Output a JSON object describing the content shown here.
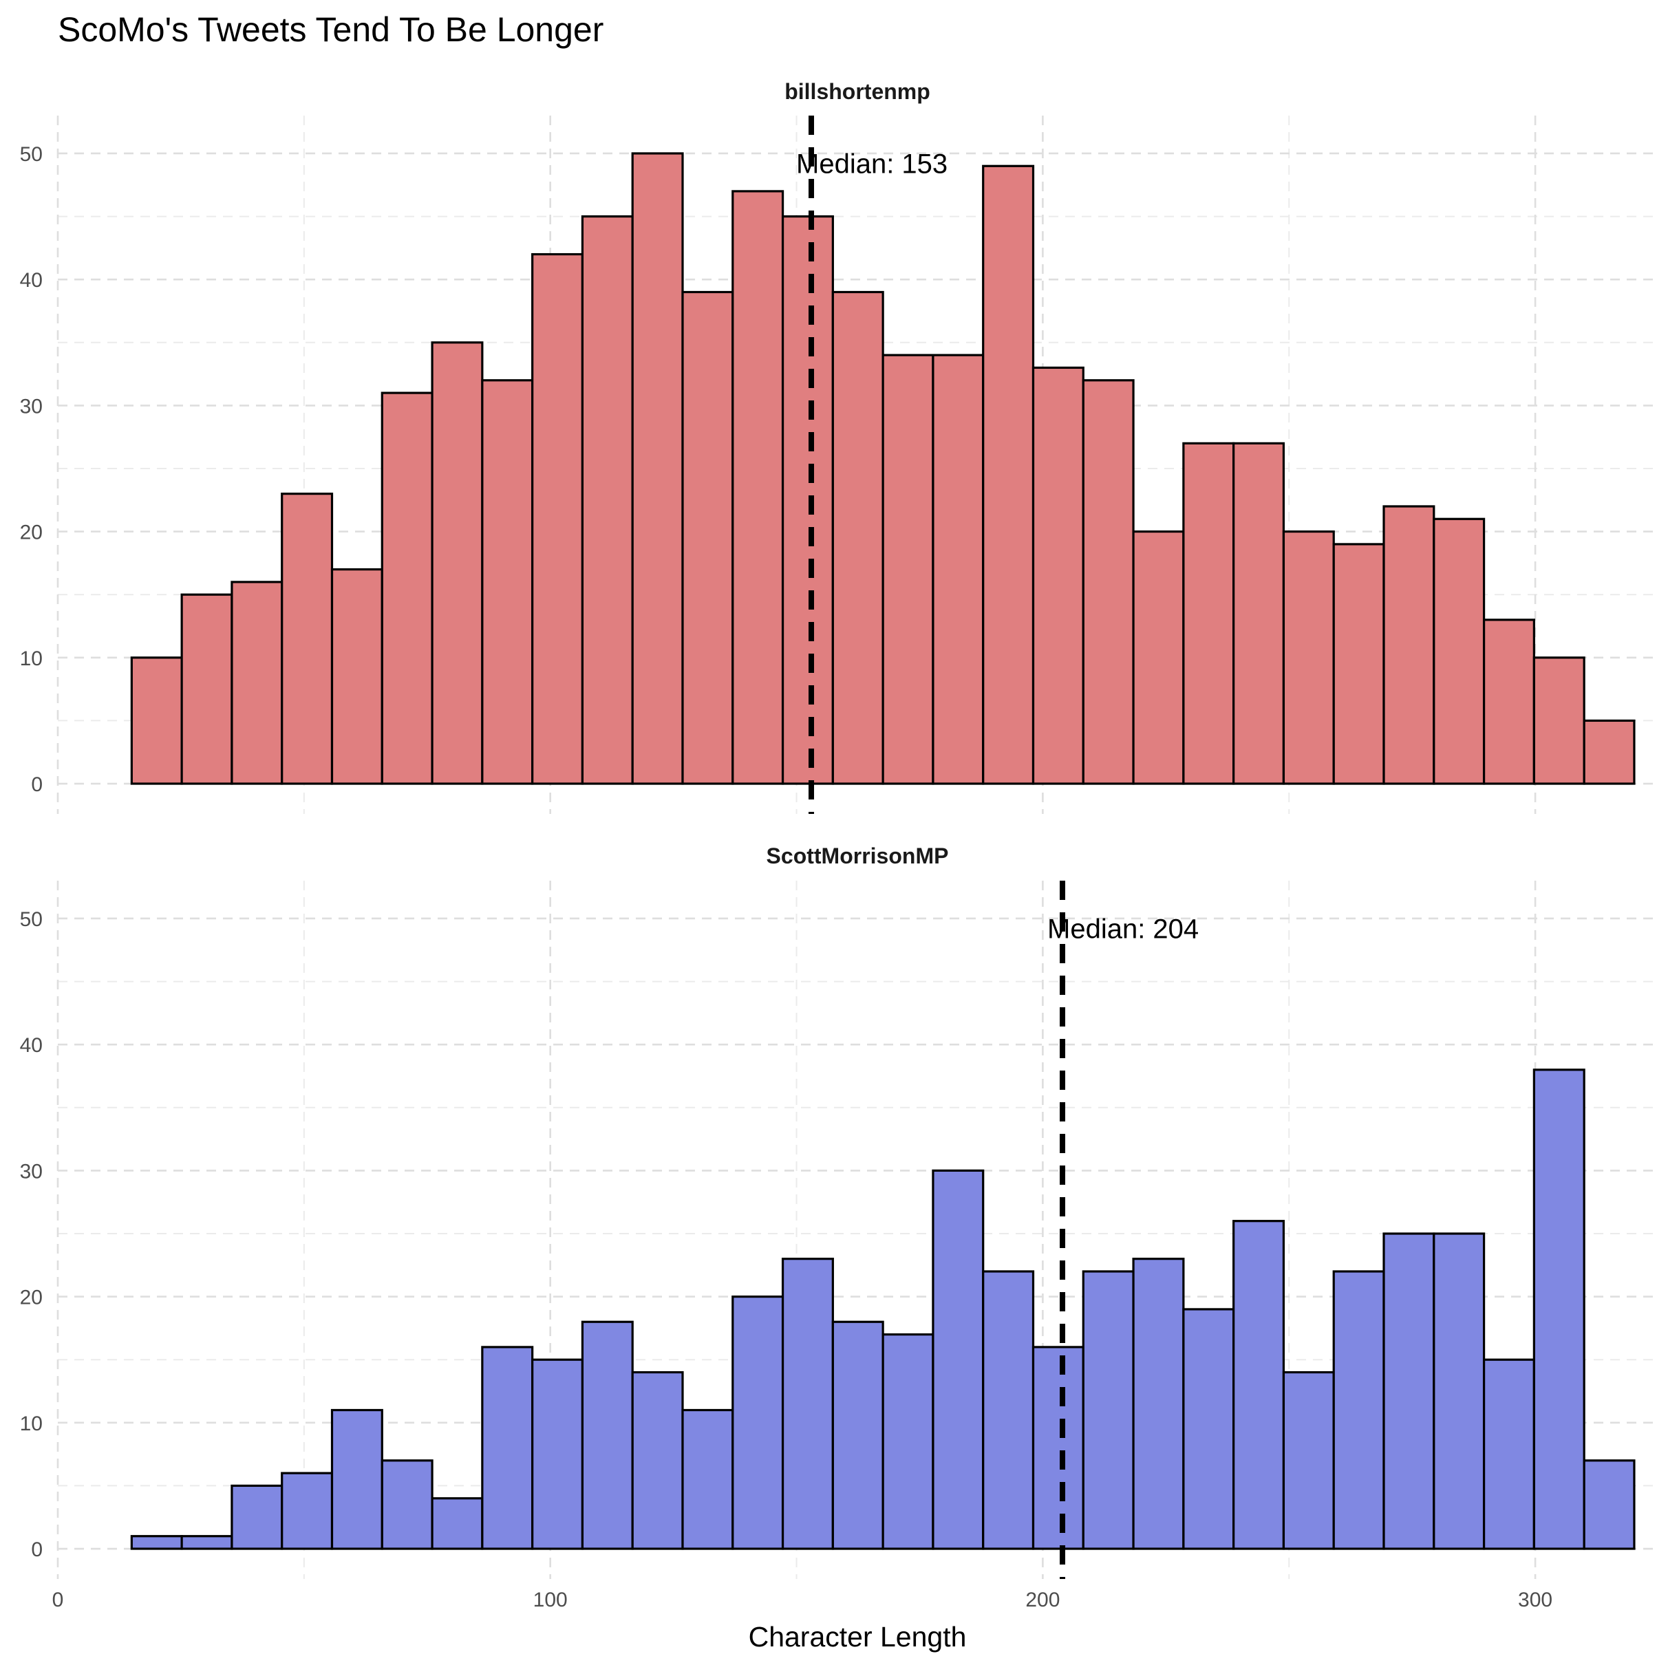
{
  "chart_data": {
    "type": "bar",
    "title": "ScoMo's Tweets Tend To Be Longer",
    "xlabel": "Character Length",
    "ylabel": "",
    "xlim": [
      0,
      325
    ],
    "ylim": [
      0,
      50
    ],
    "x_ticks": [
      "0",
      "100",
      "200",
      "300"
    ],
    "x_tick_values": [
      0,
      100,
      200,
      300
    ],
    "y_ticks": [
      "0",
      "10",
      "20",
      "30",
      "40",
      "50"
    ],
    "y_tick_values": [
      0,
      10,
      20,
      30,
      40,
      50
    ],
    "grid": "dashed",
    "bin_start": 15,
    "bin_width": 10.17,
    "panels": [
      {
        "strip_label": "billshortenmp",
        "fill": "#e07f80",
        "median": 153,
        "annotation": "Median: 153",
        "values": [
          10,
          15,
          16,
          23,
          17,
          31,
          35,
          32,
          42,
          45,
          50,
          39,
          47,
          45,
          39,
          34,
          34,
          49,
          33,
          32,
          20,
          27,
          27,
          20,
          19,
          22,
          21,
          13,
          10,
          5
        ]
      },
      {
        "strip_label": "ScottMorrisonMP",
        "fill": "#8088e2",
        "median": 204,
        "annotation": "Median: 204",
        "values": [
          1,
          1,
          5,
          6,
          11,
          7,
          4,
          16,
          15,
          18,
          14,
          11,
          20,
          23,
          18,
          17,
          30,
          22,
          16,
          22,
          23,
          19,
          26,
          14,
          22,
          25,
          25,
          15,
          38,
          7
        ]
      }
    ]
  }
}
